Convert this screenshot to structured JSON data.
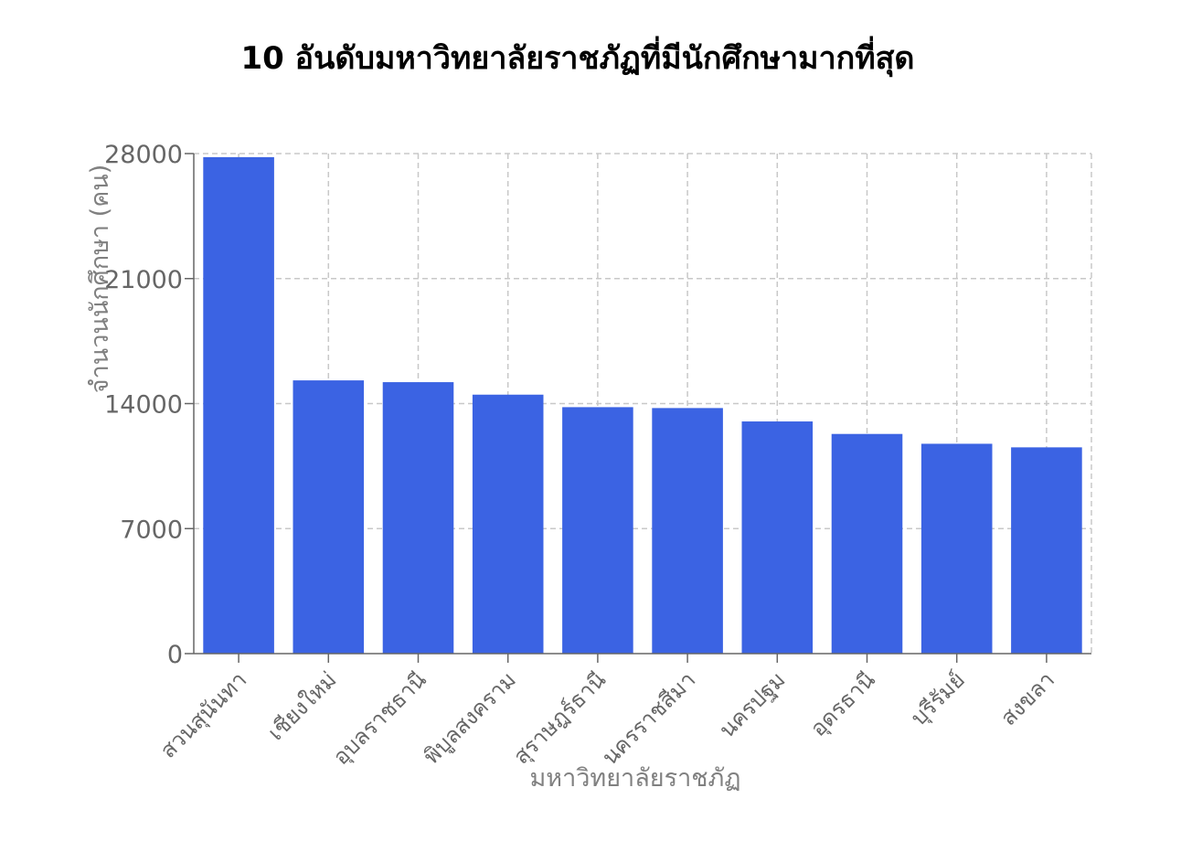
{
  "chart_data": {
    "type": "bar",
    "title": "10 อันดับมหาวิทยาลัยราชภัฏที่มีนักศึกษามากที่สุด",
    "xlabel": "มหาวิทยาลัยราชภัฏ",
    "ylabel": "จำนวนนักศึกษา (คน)",
    "categories": [
      "สวนสุนันทา",
      "เชียงใหม่",
      "อุบลราชธานี",
      "พิบูลสงคราม",
      "สุราษฎร์ธานี",
      "นครราชสีมา",
      "นครปฐม",
      "อุดรธานี",
      "บุรีรัมย์",
      "สงขลา"
    ],
    "values": [
      27800,
      15300,
      15200,
      14500,
      13800,
      13750,
      13000,
      12300,
      11750,
      11550
    ],
    "ylim": [
      0,
      28000
    ],
    "yticks": [
      0,
      7000,
      14000,
      21000,
      28000
    ],
    "grid": true,
    "legend": "none",
    "bar_color": "#3b63e3"
  }
}
